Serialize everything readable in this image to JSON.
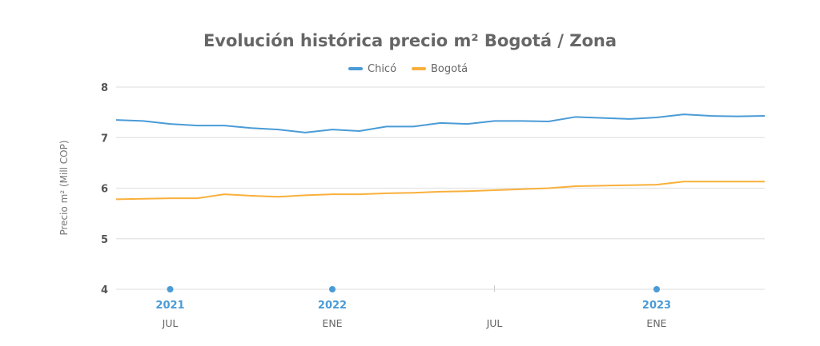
{
  "chart_data": {
    "type": "line",
    "title": "Evolución histórica precio m² Bogotá / Zona",
    "ylabel": "Precio m² (Mill COP)",
    "xlabel": "",
    "ylim": [
      4,
      8
    ],
    "yticks": [
      "4",
      "5",
      "6",
      "7",
      "8"
    ],
    "grid": true,
    "legend_position": "top-center",
    "x": [
      "2021-05",
      "2021-06",
      "2021-07",
      "2021-08",
      "2021-09",
      "2021-10",
      "2021-11",
      "2021-12",
      "2022-01",
      "2022-02",
      "2022-03",
      "2022-04",
      "2022-05",
      "2022-06",
      "2022-07",
      "2022-08",
      "2022-09",
      "2022-10",
      "2022-11",
      "2022-12",
      "2023-01",
      "2023-02",
      "2023-03",
      "2023-04",
      "2023-05"
    ],
    "xticks": [
      {
        "x": "2021-07",
        "month": "JUL",
        "year": "2021"
      },
      {
        "x": "2022-01",
        "month": "ENE",
        "year": "2022"
      },
      {
        "x": "2022-07",
        "month": "JUL",
        "year": ""
      },
      {
        "x": "2023-01",
        "month": "ENE",
        "year": "2023"
      }
    ],
    "series": [
      {
        "name": "Chicó",
        "color": "#4a9bd6",
        "values": [
          7.35,
          7.33,
          7.27,
          7.24,
          7.24,
          7.19,
          7.16,
          7.1,
          7.16,
          7.13,
          7.22,
          7.22,
          7.29,
          7.27,
          7.33,
          7.33,
          7.32,
          7.41,
          7.39,
          7.37,
          7.4,
          7.46,
          7.43,
          7.42,
          7.43
        ]
      },
      {
        "name": "Bogotá",
        "color": "#f9b03b",
        "values": [
          5.78,
          5.79,
          5.8,
          5.8,
          5.88,
          5.85,
          5.83,
          5.86,
          5.88,
          5.88,
          5.9,
          5.91,
          5.93,
          5.94,
          5.96,
          5.98,
          6.0,
          6.04,
          6.05,
          6.06,
          6.07,
          6.13,
          6.13,
          6.13,
          6.13
        ]
      }
    ]
  }
}
